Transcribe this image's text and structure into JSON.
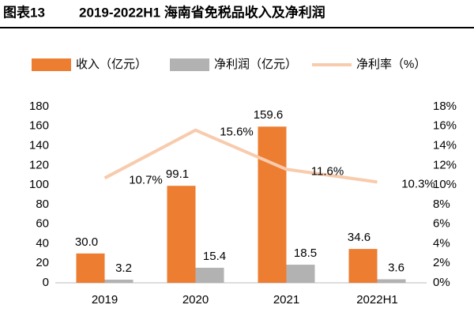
{
  "chart_data": {
    "type": "bar",
    "figure_label": "图表13",
    "title": "2019-2022H1 海南省免税品收入及净利润",
    "categories": [
      "2019",
      "2020",
      "2021",
      "2022H1"
    ],
    "series": [
      {
        "name": "收入（亿元）",
        "type": "bar",
        "color": "#ED7D31",
        "values": [
          30.0,
          99.1,
          159.6,
          34.6
        ],
        "value_labels": [
          "30.0",
          "99.1",
          "159.6",
          "34.6"
        ]
      },
      {
        "name": "净利润（亿元）",
        "type": "bar",
        "color": "#B2B2B2",
        "values": [
          3.2,
          15.4,
          18.5,
          3.6
        ]
      },
      {
        "name": "净利率（%）",
        "type": "line",
        "axis": "y2",
        "color": "#F8CBAD",
        "values": [
          10.7,
          15.6,
          11.6,
          10.3
        ],
        "value_labels": [
          "10.7%",
          "15.6%",
          "11.6%",
          "10.3%"
        ]
      }
    ],
    "ylim": [
      0,
      180
    ],
    "yticks": [
      0,
      20,
      40,
      60,
      80,
      100,
      120,
      140,
      160,
      180
    ],
    "y2lim": [
      0,
      18
    ],
    "y2ticks": [
      {
        "value": 0,
        "label": "0%"
      },
      {
        "value": 2,
        "label": "2%"
      },
      {
        "value": 4,
        "label": "4%"
      },
      {
        "value": 6,
        "label": "6%"
      },
      {
        "value": 8,
        "label": "8%"
      },
      {
        "value": 10,
        "label": "10%"
      },
      {
        "value": 12,
        "label": "12%"
      },
      {
        "value": 14,
        "label": "14%"
      },
      {
        "value": 16,
        "label": "16%"
      },
      {
        "value": 18,
        "label": "18%"
      }
    ],
    "grid": false,
    "legend": "top"
  }
}
